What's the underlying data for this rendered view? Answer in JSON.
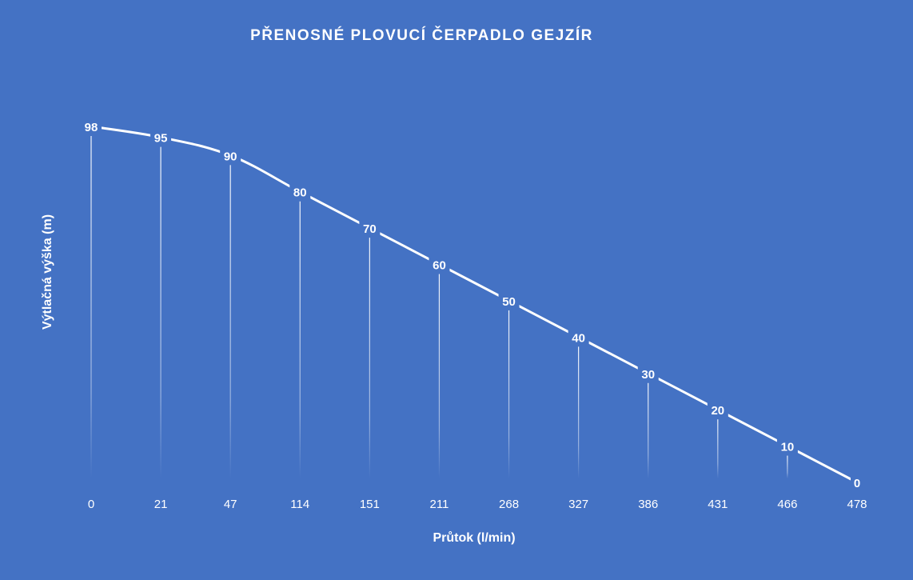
{
  "chart_data": {
    "type": "line",
    "title": "PŘENOSNÉ PLOVUCÍ ČERPADLO GEJZÍR",
    "xlabel": "Průtok (l/min)",
    "ylabel": "Výtlačná výška (m)",
    "categories": [
      "0",
      "21",
      "47",
      "114",
      "151",
      "211",
      "268",
      "327",
      "386",
      "431",
      "466",
      "478"
    ],
    "series": [
      {
        "values": [
          98,
          95,
          90,
          80,
          70,
          60,
          50,
          40,
          30,
          20,
          10,
          0
        ]
      }
    ],
    "ylim": [
      0,
      98
    ],
    "grid": false,
    "drop_lines": true,
    "data_labels": true,
    "legend": "none",
    "colors": {
      "background": "#4472c4",
      "line": "#ffffff",
      "text": "#ffffff"
    }
  }
}
